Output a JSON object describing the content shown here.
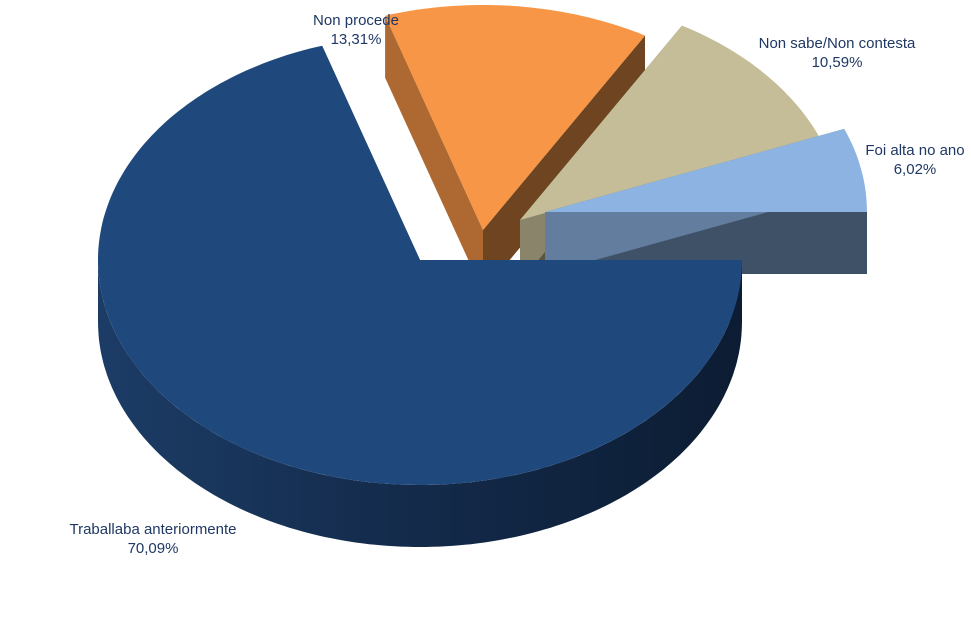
{
  "chart_data": {
    "type": "pie3d",
    "categories": [
      "Foi alta no ano",
      "Non sabe/Non contesta",
      "Non procede",
      "Traballaba anteriormente"
    ],
    "values": [
      6.02,
      10.59,
      13.31,
      70.09
    ],
    "value_labels": [
      "6,02%",
      "10,59%",
      "13,31%",
      "70,09%"
    ],
    "colors": [
      "#8db3e2",
      "#c4bd97",
      "#f79646",
      "#1f497d"
    ]
  }
}
